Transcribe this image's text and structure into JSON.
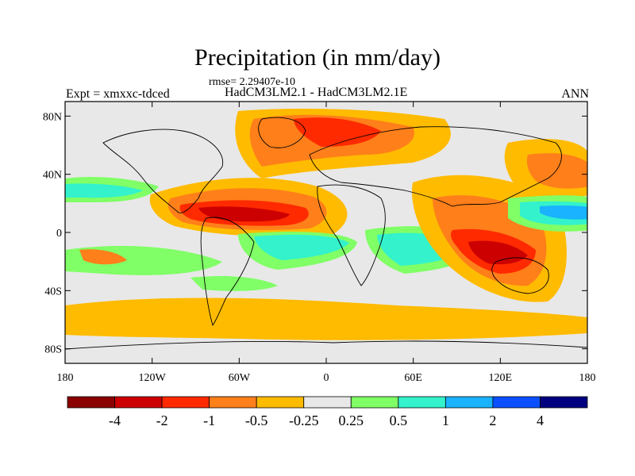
{
  "title": "Precipitation (in mm/day)",
  "rmse_label": "rmse= 2.29407e-10",
  "experiment_label": "Expt = xmxxc-tdced",
  "models_label": "HadCM3LM2.1 - HadCM3LM2.1E",
  "season_label": "ANN",
  "lat_ticks": [
    {
      "lat": 80,
      "label": "80N"
    },
    {
      "lat": 40,
      "label": "40N"
    },
    {
      "lat": 0,
      "label": "0"
    },
    {
      "lat": -40,
      "label": "40S"
    },
    {
      "lat": -80,
      "label": "80S"
    }
  ],
  "lon_ticks": [
    {
      "lon": -180,
      "label": "180"
    },
    {
      "lon": -120,
      "label": "120W"
    },
    {
      "lon": -60,
      "label": "60W"
    },
    {
      "lon": 0,
      "label": "0"
    },
    {
      "lon": 60,
      "label": "60E"
    },
    {
      "lon": 120,
      "label": "120E"
    },
    {
      "lon": 180,
      "label": "180"
    }
  ],
  "colorbar": {
    "colors": [
      "#8b0000",
      "#cc0000",
      "#ff2a00",
      "#ff7f1a",
      "#ffbb00",
      "#e8e8e8",
      "#80ff66",
      "#33f2cc",
      "#19b3ff",
      "#0a50ff",
      "#000080"
    ],
    "labels": [
      "-4",
      "-2",
      "-1",
      "-0.5",
      "-0.25",
      "0.25",
      "0.5",
      "1",
      "2",
      "4"
    ]
  },
  "colors": {
    "land_outline": "#000000",
    "zero_band": "#e8e8e8"
  }
}
